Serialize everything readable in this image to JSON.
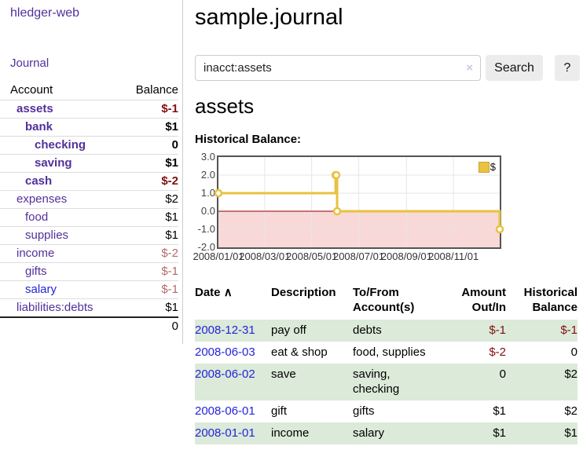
{
  "sidebar": {
    "app_title": "hledger-web",
    "journal_link": "Journal",
    "accounts_table": {
      "header_account": "Account",
      "header_balance": "Balance",
      "rows": [
        {
          "name": "assets",
          "balance": "$-1"
        },
        {
          "name": "bank",
          "balance": "$1"
        },
        {
          "name": "checking",
          "balance": "0"
        },
        {
          "name": "saving",
          "balance": "$1"
        },
        {
          "name": "cash",
          "balance": "$-2"
        },
        {
          "name": "expenses",
          "balance": "$2"
        },
        {
          "name": "food",
          "balance": "$1"
        },
        {
          "name": "supplies",
          "balance": "$1"
        },
        {
          "name": "income",
          "balance": "$-2"
        },
        {
          "name": "gifts",
          "balance": "$-1"
        },
        {
          "name": "salary",
          "balance": "$-1"
        },
        {
          "name": "liabilities:debts",
          "balance": "$1"
        }
      ],
      "total": "0"
    }
  },
  "main": {
    "title": "sample.journal",
    "search": {
      "value": "inacct:assets",
      "clear_icon": "×",
      "search_button": "Search",
      "help_button": "?"
    },
    "account_heading": "assets",
    "chart_label": "Historical Balance:"
  },
  "chart_data": {
    "type": "line",
    "step": true,
    "title": "Historical Balance:",
    "legend": "$",
    "legend_position": "top-right",
    "series": [
      {
        "name": "$",
        "color": "#e8c240",
        "points": [
          {
            "date": "2008-01-01",
            "value": 1
          },
          {
            "date": "2008-06-01",
            "value": 2
          },
          {
            "date": "2008-06-02",
            "value": 2
          },
          {
            "date": "2008-06-03",
            "value": 0
          },
          {
            "date": "2008-12-31",
            "value": -1
          }
        ]
      }
    ],
    "xdomain": [
      "2008-01-01",
      "2008-12-31"
    ],
    "xtick_labels": [
      "2008/01/01",
      "2008/03/01",
      "2008/05/01",
      "2008/07/01",
      "2008/09/01",
      "2008/11/01"
    ],
    "ytick_labels": [
      "3.0",
      "2.0",
      "1.0",
      "0.0",
      "-1.0",
      "-2.0"
    ],
    "yticks": [
      3,
      2,
      1,
      0,
      -1,
      -2
    ],
    "ylim": [
      -2,
      3
    ],
    "grid": true,
    "gridline_color": "#e6e6e6",
    "negative_region_fill": "#f9d8d8",
    "zero_line_color": "#8b0000",
    "border_color": "#545454"
  },
  "register": {
    "headers": {
      "date": "Date",
      "sort_indicator": "∧",
      "description": "Description",
      "accounts": "To/From Account(s)",
      "amount": "Amount Out/In",
      "balance": "Historical Balance"
    },
    "rows": [
      {
        "date": "2008-12-31",
        "description": "pay off",
        "accounts": "debts",
        "amount": "$-1",
        "balance": "$-1"
      },
      {
        "date": "2008-06-03",
        "description": "eat & shop",
        "accounts": "food, supplies",
        "amount": "$-2",
        "balance": "0"
      },
      {
        "date": "2008-06-02",
        "description": "save",
        "accounts": "saving,\nchecking",
        "amount": "0",
        "balance": "$2"
      },
      {
        "date": "2008-06-01",
        "description": "gift",
        "accounts": "gifts",
        "amount": "$1",
        "balance": "$2"
      },
      {
        "date": "2008-01-01",
        "description": "income",
        "accounts": "salary",
        "amount": "$1",
        "balance": "$1"
      }
    ]
  }
}
